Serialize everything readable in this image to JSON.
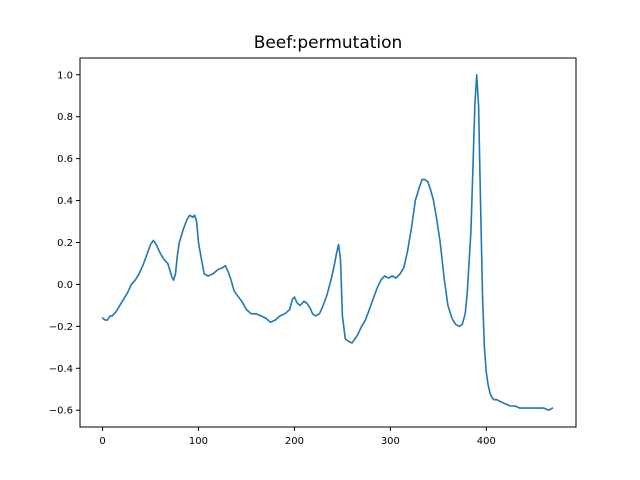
{
  "chart_data": {
    "type": "line",
    "title": "Beef:permutation",
    "xlabel": "",
    "ylabel": "",
    "xlim": [
      -23.5,
      493.5
    ],
    "ylim": [
      -0.68,
      1.08
    ],
    "x_ticks": [
      0,
      100,
      200,
      300,
      400
    ],
    "x_tick_labels": [
      "0",
      "100",
      "200",
      "300",
      "400"
    ],
    "y_ticks": [
      -0.6,
      -0.4,
      -0.2,
      0.0,
      0.2,
      0.4,
      0.6,
      0.8,
      1.0
    ],
    "y_tick_labels": [
      "−0.6",
      "−0.4",
      "−0.2",
      "0.0",
      "0.2",
      "0.4",
      "0.6",
      "0.8",
      "1.0"
    ],
    "grid": false,
    "legend": "none",
    "series_color": "#1f77b4",
    "series": [
      {
        "x": [
          0,
          3,
          5,
          8,
          10,
          14,
          18,
          22,
          26,
          30,
          34,
          38,
          42,
          46,
          50,
          53,
          56,
          60,
          64,
          68,
          72,
          74,
          76,
          78,
          80,
          84,
          88,
          91,
          94,
          96,
          98,
          100,
          103,
          106,
          110,
          115,
          120,
          125,
          128,
          131,
          134,
          137,
          140,
          145,
          150,
          155,
          160,
          165,
          170,
          175,
          180,
          185,
          190,
          195,
          198,
          200,
          203,
          206,
          210,
          213,
          216,
          219,
          222,
          226,
          230,
          234,
          238,
          241,
          244,
          246,
          248,
          250,
          253,
          256,
          260,
          263,
          266,
          270,
          274,
          278,
          282,
          286,
          290,
          294,
          298,
          302,
          306,
          310,
          314,
          318,
          322,
          326,
          330,
          333,
          336,
          339,
          342,
          345,
          348,
          352,
          356,
          360,
          364,
          368,
          372,
          375,
          378,
          380,
          382,
          384,
          386,
          388,
          390,
          392,
          394,
          396,
          398,
          400,
          402,
          404,
          406,
          408,
          411,
          415,
          420,
          425,
          430,
          435,
          440,
          445,
          450,
          455,
          460,
          465,
          469
        ],
        "y": [
          -0.16,
          -0.17,
          -0.17,
          -0.15,
          -0.15,
          -0.13,
          -0.1,
          -0.07,
          -0.04,
          0.0,
          0.02,
          0.05,
          0.09,
          0.14,
          0.19,
          0.21,
          0.19,
          0.15,
          0.12,
          0.1,
          0.04,
          0.02,
          0.05,
          0.14,
          0.2,
          0.26,
          0.31,
          0.33,
          0.32,
          0.33,
          0.3,
          0.2,
          0.12,
          0.05,
          0.04,
          0.05,
          0.07,
          0.08,
          0.09,
          0.06,
          0.02,
          -0.03,
          -0.05,
          -0.08,
          -0.12,
          -0.14,
          -0.14,
          -0.15,
          -0.16,
          -0.18,
          -0.17,
          -0.15,
          -0.14,
          -0.12,
          -0.07,
          -0.06,
          -0.09,
          -0.1,
          -0.08,
          -0.09,
          -0.11,
          -0.14,
          -0.15,
          -0.14,
          -0.1,
          -0.05,
          0.02,
          0.08,
          0.15,
          0.19,
          0.12,
          -0.15,
          -0.26,
          -0.27,
          -0.28,
          -0.26,
          -0.24,
          -0.2,
          -0.17,
          -0.12,
          -0.07,
          -0.02,
          0.02,
          0.04,
          0.03,
          0.04,
          0.03,
          0.05,
          0.08,
          0.16,
          0.27,
          0.4,
          0.46,
          0.5,
          0.5,
          0.49,
          0.45,
          0.4,
          0.32,
          0.2,
          0.03,
          -0.1,
          -0.16,
          -0.19,
          -0.2,
          -0.19,
          -0.14,
          -0.05,
          0.1,
          0.25,
          0.55,
          0.85,
          1.0,
          0.85,
          0.4,
          -0.05,
          -0.3,
          -0.42,
          -0.48,
          -0.52,
          -0.54,
          -0.55,
          -0.55,
          -0.56,
          -0.57,
          -0.58,
          -0.58,
          -0.59,
          -0.59,
          -0.59,
          -0.59,
          -0.59,
          -0.59,
          -0.6,
          -0.59
        ]
      }
    ]
  }
}
